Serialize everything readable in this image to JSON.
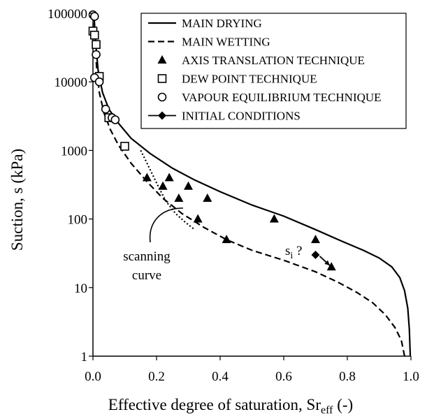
{
  "chart_data": {
    "type": "scatter",
    "xlabel": "Effective degree of saturation, Sr",
    "xlabel_subscript": "eff",
    "xlabel_suffix": " (-)",
    "ylabel": "Suction, s (kPa)",
    "xlim": [
      0,
      1
    ],
    "ylim": [
      1,
      100000
    ],
    "y_scale": "log",
    "grid": false,
    "legend_position": "top-right",
    "x_ticks": [
      "0.0",
      "0.2",
      "0.4",
      "0.6",
      "0.8",
      "1.0"
    ],
    "y_ticks": [
      "1",
      "10",
      "100",
      "1000",
      "10000",
      "100000"
    ],
    "series": [
      {
        "name": "MAIN DRYING",
        "kind": "line",
        "style": "solid",
        "points": [
          [
            0.003,
            100000
          ],
          [
            0.008,
            40000
          ],
          [
            0.016,
            15000
          ],
          [
            0.03,
            7000
          ],
          [
            0.05,
            4000
          ],
          [
            0.08,
            2500
          ],
          [
            0.12,
            1500
          ],
          [
            0.18,
            900
          ],
          [
            0.25,
            550
          ],
          [
            0.32,
            370
          ],
          [
            0.4,
            250
          ],
          [
            0.5,
            160
          ],
          [
            0.6,
            110
          ],
          [
            0.7,
            70
          ],
          [
            0.78,
            48
          ],
          [
            0.85,
            35
          ],
          [
            0.9,
            27
          ],
          [
            0.94,
            20
          ],
          [
            0.965,
            14
          ],
          [
            0.98,
            9
          ],
          [
            0.99,
            5
          ],
          [
            0.995,
            2.5
          ],
          [
            0.998,
            1
          ]
        ]
      },
      {
        "name": "MAIN WETTING",
        "kind": "line",
        "style": "dashed",
        "points": [
          [
            0.003,
            100000
          ],
          [
            0.006,
            40000
          ],
          [
            0.012,
            15000
          ],
          [
            0.02,
            7000
          ],
          [
            0.035,
            3500
          ],
          [
            0.055,
            2000
          ],
          [
            0.08,
            1200
          ],
          [
            0.12,
            650
          ],
          [
            0.17,
            350
          ],
          [
            0.22,
            200
          ],
          [
            0.28,
            120
          ],
          [
            0.35,
            75
          ],
          [
            0.42,
            50
          ],
          [
            0.5,
            35
          ],
          [
            0.6,
            25
          ],
          [
            0.7,
            17
          ],
          [
            0.77,
            12
          ],
          [
            0.83,
            8.5
          ],
          [
            0.88,
            6
          ],
          [
            0.92,
            4
          ],
          [
            0.95,
            2.6
          ],
          [
            0.97,
            1.7
          ],
          [
            0.98,
            1
          ]
        ]
      },
      {
        "name": "scanning curve",
        "kind": "line",
        "style": "dotted",
        "points": [
          [
            0.15,
            1000
          ],
          [
            0.17,
            650
          ],
          [
            0.19,
            420
          ],
          [
            0.21,
            270
          ],
          [
            0.23,
            180
          ],
          [
            0.26,
            120
          ],
          [
            0.29,
            90
          ],
          [
            0.32,
            70
          ]
        ]
      },
      {
        "name": "AXIS TRANSLATION TECHNIQUE",
        "kind": "marker",
        "marker": "triangle",
        "points": [
          [
            0.17,
            400
          ],
          [
            0.22,
            300
          ],
          [
            0.24,
            400
          ],
          [
            0.27,
            200
          ],
          [
            0.3,
            300
          ],
          [
            0.33,
            100
          ],
          [
            0.36,
            200
          ],
          [
            0.42,
            50
          ],
          [
            0.57,
            100
          ],
          [
            0.7,
            50
          ],
          [
            0.75,
            20
          ]
        ]
      },
      {
        "name": "DEW POINT TECHNIQUE",
        "kind": "marker",
        "marker": "square",
        "points": [
          [
            0.0,
            55000
          ],
          [
            0.005,
            48000
          ],
          [
            0.01,
            35000
          ],
          [
            0.015,
            11500
          ],
          [
            0.02,
            12000
          ],
          [
            0.05,
            3000
          ],
          [
            0.1,
            1150
          ]
        ]
      },
      {
        "name": "VAPOUR EQUILIBRIUM TECHNIQUE",
        "kind": "marker",
        "marker": "circle",
        "points": [
          [
            0.0,
            95000
          ],
          [
            0.005,
            90000
          ],
          [
            0.01,
            25000
          ],
          [
            0.005,
            11500
          ],
          [
            0.02,
            10000
          ],
          [
            0.04,
            4000
          ],
          [
            0.06,
            3000
          ],
          [
            0.07,
            2800
          ]
        ]
      },
      {
        "name": "INITIAL CONDITIONS",
        "kind": "marker",
        "marker": "diamond",
        "points": [
          [
            0.7,
            30
          ]
        ]
      }
    ],
    "annotations": {
      "scanning_line1": "scanning",
      "scanning_line2": "curve",
      "si_main": "s",
      "si_sub": "i",
      "si_suffix": " ?"
    }
  }
}
